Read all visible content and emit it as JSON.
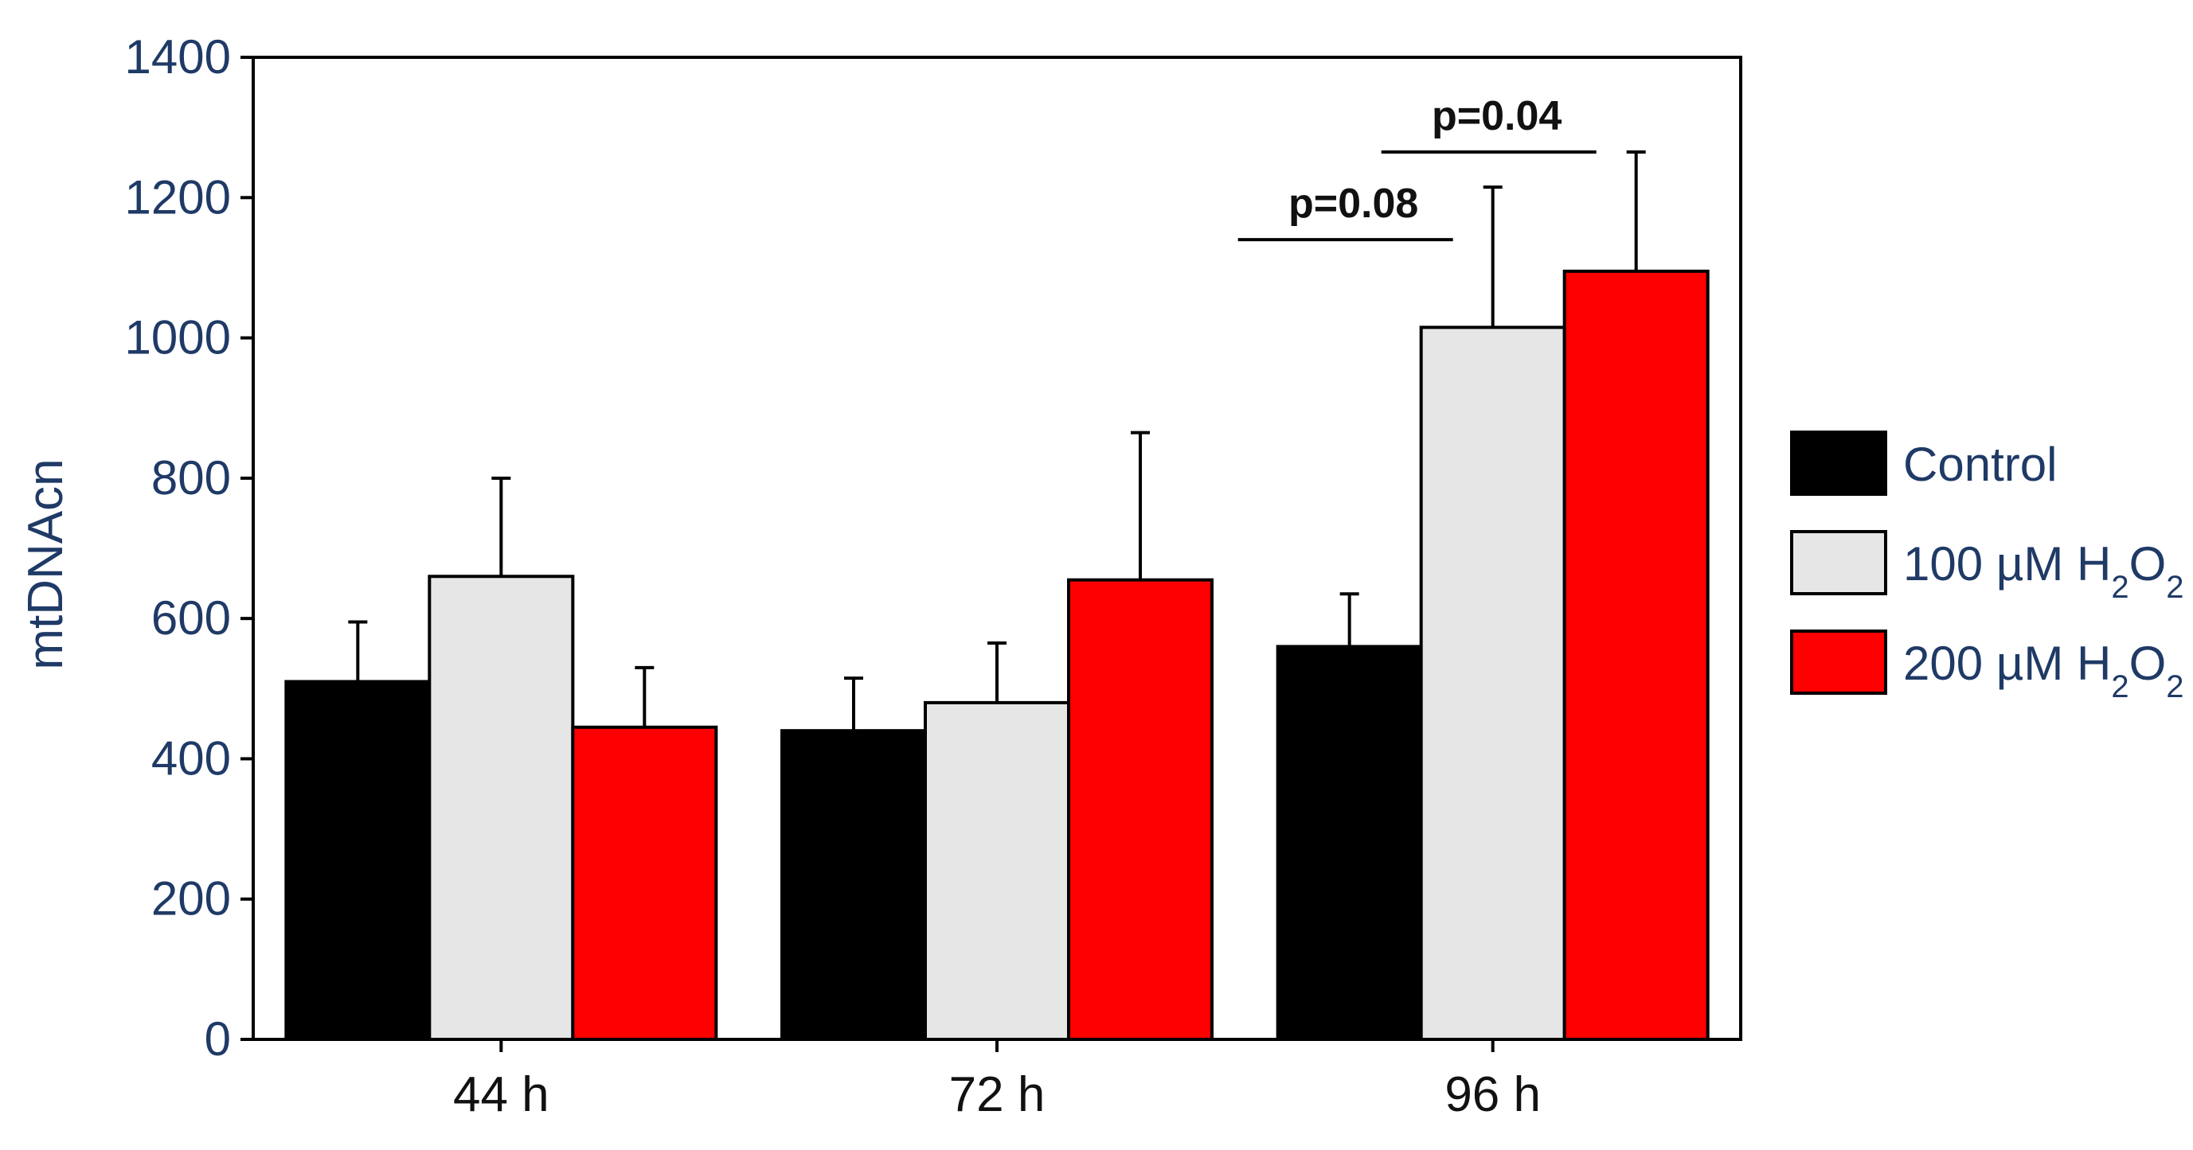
{
  "chart_data": {
    "type": "bar",
    "ylabel": "mtDNAcn",
    "xlabel": "",
    "ylim": [
      0,
      1400
    ],
    "yticks": [
      "0",
      "200",
      "400",
      "600",
      "800",
      "1000",
      "1200",
      "1400"
    ],
    "categories": [
      "44 h",
      "72 h",
      "96 h"
    ],
    "series": [
      {
        "name": "Control",
        "legend_main": "Control",
        "legend_sub": "",
        "legend_tail": "",
        "color": "#000000",
        "values": [
          510,
          440,
          560
        ],
        "errors": [
          85,
          75,
          75
        ]
      },
      {
        "name": "100 µM H2O2",
        "legend_main": "100 µM H",
        "legend_sub": "2",
        "legend_tail": "O",
        "legend_sub2": "2",
        "color": "#e6e6e6",
        "values": [
          660,
          480,
          1015
        ],
        "errors": [
          140,
          85,
          200
        ]
      },
      {
        "name": "200 µM H2O2",
        "legend_main": "200 µM H",
        "legend_sub": "2",
        "legend_tail": "O",
        "legend_sub2": "2",
        "color": "#ff0000",
        "values": [
          445,
          655,
          1095
        ],
        "errors": [
          85,
          210,
          170
        ]
      }
    ],
    "annotations": [
      {
        "label": "p=0.04",
        "y": 1265,
        "category": "96 h",
        "from_series": 1,
        "to_series": 2
      },
      {
        "label": "p=0.08",
        "y": 1140,
        "category": "96 h",
        "from_series": 0,
        "to_series": 1
      }
    ],
    "grid": false,
    "legend_position": "right"
  }
}
